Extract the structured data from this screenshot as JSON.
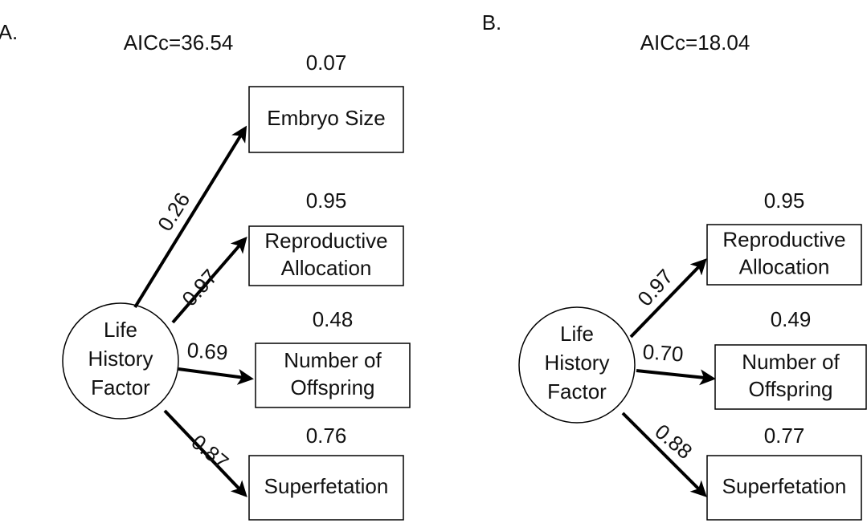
{
  "panels": [
    {
      "label": "A.",
      "aicc": "AICc=36.54",
      "factor": [
        "Life",
        "History",
        "Factor"
      ],
      "nodes": [
        {
          "label": [
            "Embryo Size"
          ],
          "r2": "0.07",
          "coefficient": "0.26"
        },
        {
          "label": [
            "Reproductive",
            "Allocation"
          ],
          "r2": "0.95",
          "coefficient": "0.97"
        },
        {
          "label": [
            "Number of",
            "Offspring"
          ],
          "r2": "0.48",
          "coefficient": "0.69"
        },
        {
          "label": [
            "Superfetation"
          ],
          "r2": "0.76",
          "coefficient": "0.87"
        }
      ]
    },
    {
      "label": "B.",
      "aicc": "AICc=18.04",
      "factor": [
        "Life",
        "History",
        "Factor"
      ],
      "nodes": [
        {
          "label": [
            "Reproductive",
            "Allocation"
          ],
          "r2": "0.95",
          "coefficient": "0.97"
        },
        {
          "label": [
            "Number of",
            "Offspring"
          ],
          "r2": "0.49",
          "coefficient": "0.70"
        },
        {
          "label": [
            "Superfetation"
          ],
          "r2": "0.77",
          "coefficient": "0.88"
        }
      ]
    }
  ]
}
